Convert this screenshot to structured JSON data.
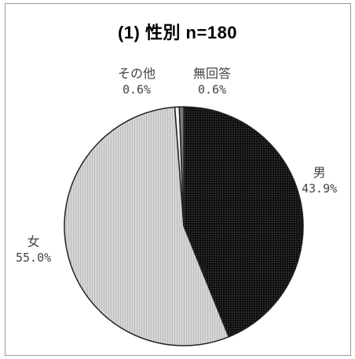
{
  "chart_data": {
    "type": "pie",
    "title": "(1) 性別 n=180",
    "slices": [
      {
        "label": "男",
        "value": 43.9,
        "pct_label": "43.9%",
        "color": "#1a1a1a"
      },
      {
        "label": "女",
        "value": 55.0,
        "pct_label": "55.0%",
        "color": "#cfcfcf"
      },
      {
        "label": "その他",
        "value": 0.6,
        "pct_label": "0.6%",
        "color": "#f2f2f2"
      },
      {
        "label": "無回答",
        "value": 0.6,
        "pct_label": "0.6%",
        "color": "#7a7a7a"
      }
    ],
    "start_angle_deg": 0,
    "direction": "clockwise"
  }
}
